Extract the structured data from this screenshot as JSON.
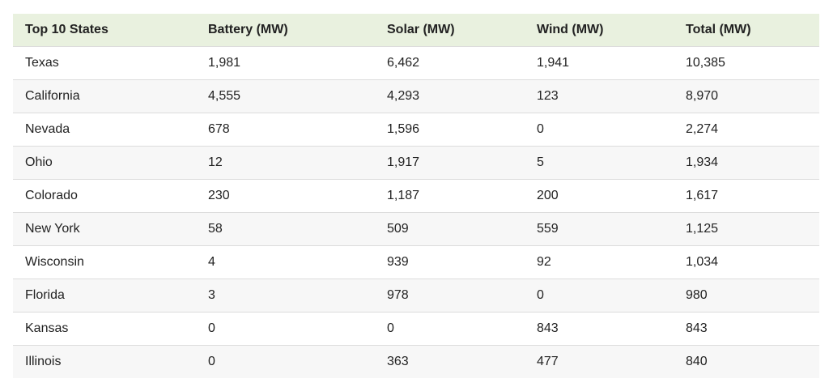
{
  "table": {
    "header": [
      "Top 10 States",
      "Battery (MW)",
      "Solar (MW)",
      "Wind (MW)",
      "Total (MW)"
    ],
    "rows": [
      [
        "Texas",
        "1,981",
        "6,462",
        "1,941",
        "10,385"
      ],
      [
        "California",
        "4,555",
        "4,293",
        "123",
        "8,970"
      ],
      [
        "Nevada",
        "678",
        "1,596",
        "0",
        "2,274"
      ],
      [
        "Ohio",
        "12",
        "1,917",
        "5",
        "1,934"
      ],
      [
        "Colorado",
        "230",
        "1,187",
        "200",
        "1,617"
      ],
      [
        "New York",
        "58",
        "509",
        "559",
        "1,125"
      ],
      [
        "Wisconsin",
        "4",
        "939",
        "92",
        "1,034"
      ],
      [
        "Florida",
        "3",
        "978",
        "0",
        "980"
      ],
      [
        "Kansas",
        "0",
        "0",
        "843",
        "843"
      ],
      [
        "Illinois",
        "0",
        "363",
        "477",
        "840"
      ]
    ]
  }
}
